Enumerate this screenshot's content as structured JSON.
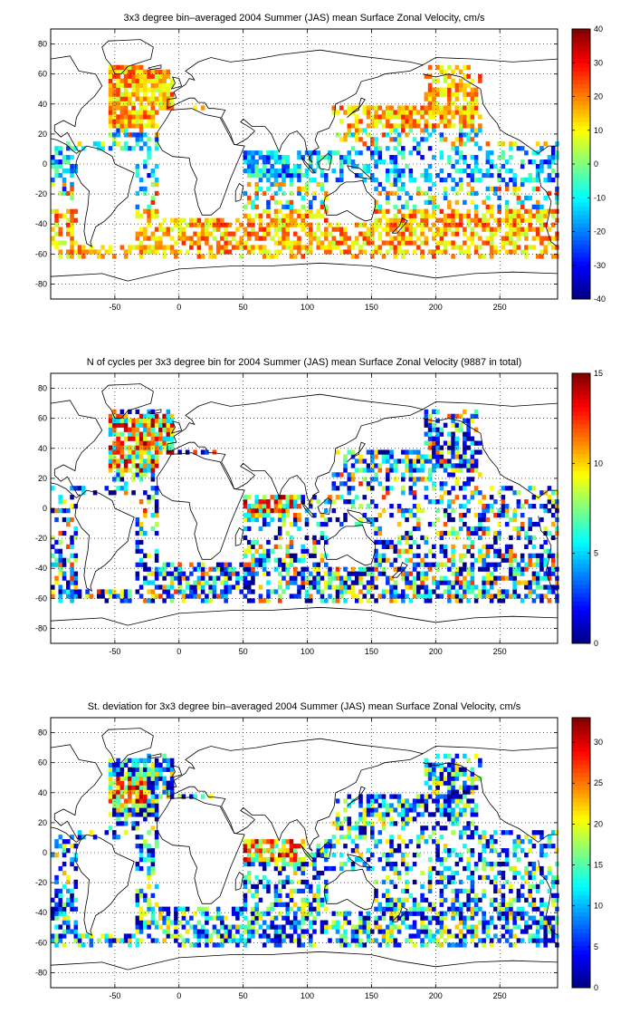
{
  "chart_data": [
    {
      "type": "heatmap",
      "title": "3x3 degree bin–averaged 2004 Summer (JAS) mean Surface Zonal Velocity, cm/s",
      "xlim": [
        -100,
        295
      ],
      "ylim": [
        -90,
        90
      ],
      "x_ticks": [
        -50,
        0,
        50,
        100,
        150,
        200,
        250
      ],
      "y_ticks": [
        80,
        60,
        40,
        20,
        0,
        -20,
        -40,
        -60,
        -80
      ],
      "grid": true,
      "colorbar": {
        "min": -40,
        "max": 40,
        "ticks": [
          40,
          30,
          20,
          10,
          0,
          -10,
          -20,
          -30,
          -40
        ],
        "position": "right"
      }
    },
    {
      "type": "heatmap",
      "title": "N of cycles per 3x3 degree bin for 2004 Summer (JAS) mean Surface Zonal Velocity (9887 in total)",
      "xlim": [
        -100,
        295
      ],
      "ylim": [
        -90,
        90
      ],
      "x_ticks": [
        -50,
        0,
        50,
        100,
        150,
        200,
        250
      ],
      "y_ticks": [
        80,
        60,
        40,
        20,
        0,
        -20,
        -40,
        -60,
        -80
      ],
      "grid": true,
      "colorbar": {
        "min": 0,
        "max": 15,
        "ticks": [
          15,
          10,
          5,
          0
        ],
        "position": "right"
      }
    },
    {
      "type": "heatmap",
      "title": "St. deviation for 3x3 degree bin–averaged 2004 Summer (JAS) mean Surface Zonal Velocity, cm/s",
      "xlim": [
        -100,
        295
      ],
      "ylim": [
        -90,
        90
      ],
      "x_ticks": [
        -50,
        0,
        50,
        100,
        150,
        200,
        250
      ],
      "y_ticks": [
        80,
        60,
        40,
        20,
        0,
        -20,
        -40,
        -60,
        -80
      ],
      "grid": true,
      "colorbar": {
        "min": 0,
        "max": 33,
        "ticks": [
          30,
          25,
          20,
          15,
          10,
          5,
          0
        ],
        "position": "right"
      }
    }
  ]
}
